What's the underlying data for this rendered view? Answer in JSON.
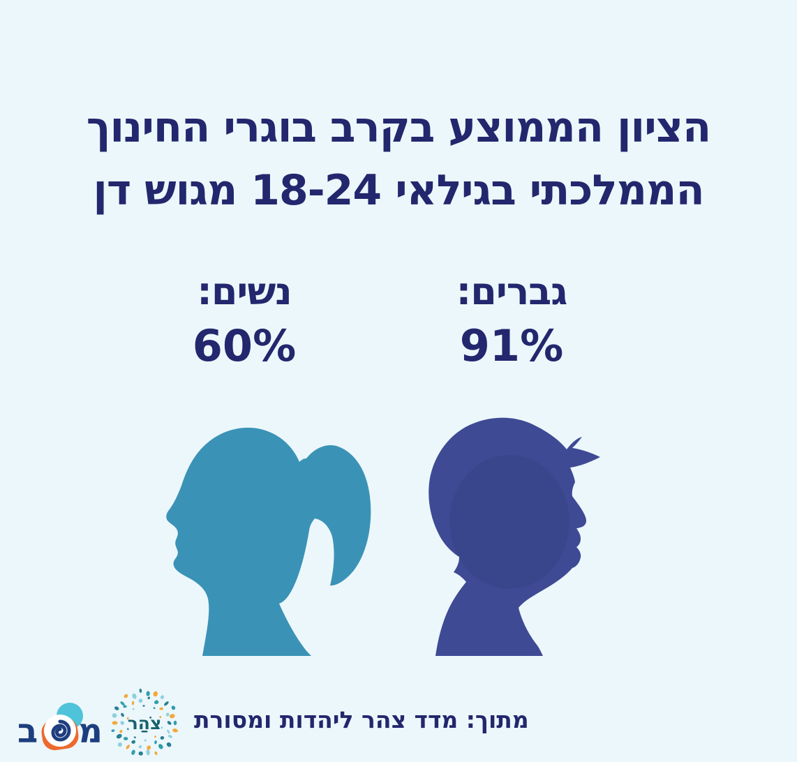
{
  "title": {
    "line1": "הציון הממוצע בקרב בוגרי החינוך",
    "line2": "הממלכתי בגילאי 18-24 מגוש דן"
  },
  "stats": {
    "men": {
      "label": "גברים:",
      "value": "91%"
    },
    "women": {
      "label": "נשים:",
      "value": "60%"
    }
  },
  "footer": {
    "source": "מתוך: מדד צהר ליהדות ומסורת",
    "mashav_logo": {
      "mem": "מ",
      "bet": "ב"
    },
    "tzohar_logo": {
      "text": "צֹהַר"
    }
  },
  "colors": {
    "background": "#ecf7fb",
    "navy_text": "#23276d",
    "female_teal": "#3a93b6",
    "male_indigo": "#3e4a94",
    "mashav_blue": "#1d3e7e",
    "mashav_teal": "#4ec3d9",
    "mashav_orange": "#ed6a2d",
    "tzohar_teal": "#2f9eae",
    "tzohar_dark_teal": "#2a7f93",
    "tzohar_orange": "#f2a93b",
    "tzohar_lightblue": "#8fd0dd",
    "tzohar_text": "#15616d"
  },
  "chart_data": {
    "type": "bar",
    "style": "pictogram-head-silhouettes",
    "title": "הציון הממוצע בקרב בוגרי החינוך הממלכתי בגילאי 18-24 מגוש דן",
    "categories": [
      "גברים",
      "נשים"
    ],
    "values": [
      91,
      60
    ],
    "unit": "%",
    "series_colors": [
      "#3e4a94",
      "#3a93b6"
    ],
    "source": "מתוך: מדד צהר ליהדות ומסורת",
    "grid": false,
    "legend_position": "none"
  }
}
